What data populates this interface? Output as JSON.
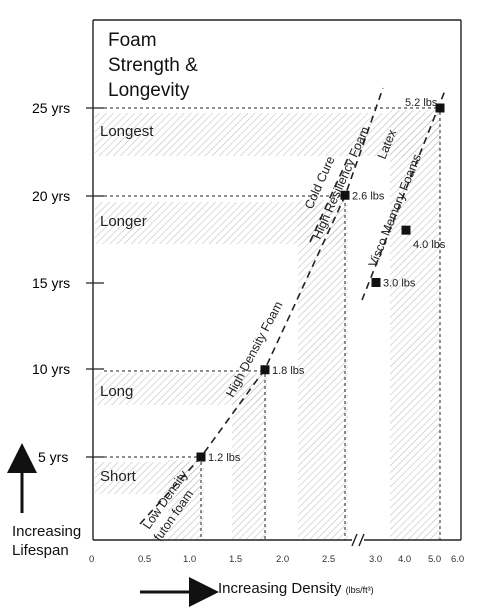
{
  "chart_data": {
    "type": "scatter",
    "title": [
      "Foam",
      "Strength &",
      "Longevity"
    ],
    "xlabel": "Increasing Density",
    "xunit": "(lbs/ft³)",
    "ylabel": [
      "Increasing",
      "Lifespan"
    ],
    "x_ticks": [
      "0",
      "0.5",
      "1.0",
      "1.5",
      "2.0",
      "2.5",
      "3.0",
      "4.0",
      "5.0",
      "6.0"
    ],
    "y_ticks": [
      "5 yrs",
      "10 yrs",
      "15 yrs",
      "20 yrs",
      "25 yrs"
    ],
    "zones": [
      "Short",
      "Long",
      "Longer",
      "Longest"
    ],
    "points": [
      {
        "label": "1.2 lbs",
        "density": 1.2,
        "years": 5
      },
      {
        "label": "1.8 lbs",
        "density": 1.8,
        "years": 10
      },
      {
        "label": "2.6 lbs",
        "density": 2.6,
        "years": 20
      },
      {
        "label": "3.0 lbs",
        "density": 3.0,
        "years": 15
      },
      {
        "label": "4.0 lbs",
        "density": 4.0,
        "years": 18
      },
      {
        "label": "5.2 lbs",
        "density": 5.2,
        "years": 25
      }
    ],
    "bands": [
      {
        "line1": "Low Density",
        "line2": "futon foam"
      },
      {
        "line1": "High Density Foam",
        "line2": ""
      },
      {
        "line1": "Cold Cure",
        "line2": "High Resiliency Foam"
      },
      {
        "line1": "Latex",
        "line2": ""
      },
      {
        "line1": "Visco Memory Foams",
        "line2": ""
      }
    ],
    "grid": false,
    "axis_break": "//"
  }
}
